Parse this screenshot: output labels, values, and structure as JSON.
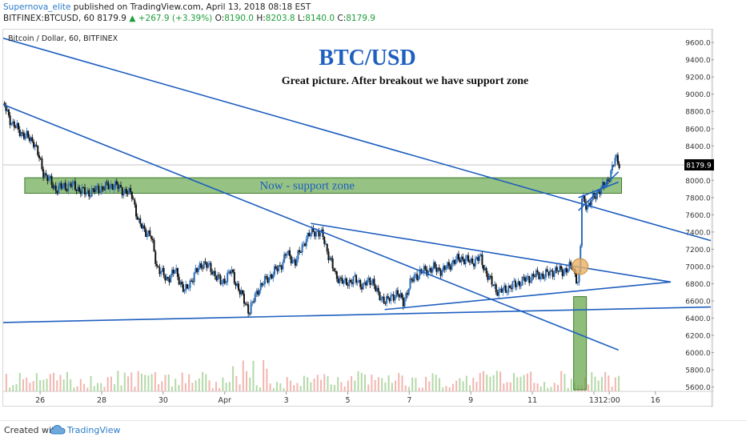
{
  "header": {
    "author": "Supernova_elite",
    "published_text": "published on TradingView.com, April 13, 2018 08:18 EST",
    "symbol": "BITFINEX:BTCUSD, 60",
    "last": "8179.9",
    "change": "▲ +267.9 (+3.39%)",
    "o_label": "O:",
    "o_value": "8190.0",
    "h_label": "H:",
    "h_value": "8203.8",
    "l_label": "L:",
    "l_value": "8140.0",
    "c_label": "C:",
    "c_value": "8179.9"
  },
  "footer": {
    "created_with": "Created with",
    "brand": "TradingView"
  },
  "colors": {
    "accent": "#2a7cc7",
    "trendline": "#1f5fbf",
    "zone_fill": "#6aa84f",
    "bull": "#2b6cb8",
    "bear": "#111111",
    "volume_up": "#b5d9a8",
    "volume_down": "#f2b6b0",
    "marker": "#e8b068"
  },
  "chart_data": {
    "type": "candlestick",
    "legend_title": "Bitcoin / Dollar, 60, BITFINEX",
    "annotation_title": "BTC/USD",
    "annotation_subtitle": "Great picture. After breakout we have support zone",
    "zone_label": "Now - support zone",
    "last_price_label": "8179.9",
    "ylim": [
      5550,
      9750
    ],
    "y_ticks": [
      9600,
      9400,
      9200,
      9000,
      8800,
      8600,
      8400,
      8200,
      8000,
      7800,
      7600,
      7400,
      7200,
      7000,
      6800,
      6600,
      6400,
      6200,
      6000,
      5800,
      5600
    ],
    "y_tick_labels": [
      "9600.0",
      "9400.0",
      "9200.0",
      "9000.0",
      "8800.0",
      "8600.0",
      "8400.0",
      "8200.0",
      "8000.0",
      "7800.0",
      "7600.0",
      "7400.0",
      "7200.0",
      "7000.0",
      "6800.0",
      "6600.0",
      "6400.0",
      "6200.0",
      "6000.0",
      "5800.0",
      "5600.0"
    ],
    "x_ticks": [
      "26",
      "28",
      "30",
      "Apr",
      "3",
      "5",
      "7",
      "9",
      "11",
      "13",
      "12:00",
      "16"
    ],
    "x_tick_days": [
      -5,
      -3,
      -1,
      1,
      3,
      5,
      7,
      9,
      11,
      13,
      13.5,
      15
    ],
    "xlim": [
      -6.2,
      16.8
    ],
    "price_path": [
      [
        -6.2,
        8900
      ],
      [
        -5.9,
        8650
      ],
      [
        -5.5,
        8520
      ],
      [
        -5.2,
        8450
      ],
      [
        -4.9,
        8100
      ],
      [
        -4.5,
        7900
      ],
      [
        -4.0,
        7950
      ],
      [
        -3.5,
        7850
      ],
      [
        -3.1,
        7900
      ],
      [
        -2.6,
        7950
      ],
      [
        -2.3,
        7880
      ],
      [
        -2.0,
        7830
      ],
      [
        -1.8,
        7500
      ],
      [
        -1.4,
        7350
      ],
      [
        -1.2,
        7000
      ],
      [
        -0.9,
        6850
      ],
      [
        -0.6,
        6950
      ],
      [
        -0.3,
        6700
      ],
      [
        0.0,
        6900
      ],
      [
        0.3,
        7050
      ],
      [
        0.6,
        6950
      ],
      [
        0.9,
        6800
      ],
      [
        1.2,
        6950
      ],
      [
        1.5,
        6700
      ],
      [
        1.8,
        6480
      ],
      [
        2.1,
        6750
      ],
      [
        2.5,
        6900
      ],
      [
        2.8,
        7000
      ],
      [
        3.0,
        7150
      ],
      [
        3.3,
        7050
      ],
      [
        3.6,
        7300
      ],
      [
        3.9,
        7420
      ],
      [
        4.2,
        7350
      ],
      [
        4.4,
        7100
      ],
      [
        4.6,
        6900
      ],
      [
        4.9,
        6800
      ],
      [
        5.2,
        6850
      ],
      [
        5.5,
        6780
      ],
      [
        5.8,
        6850
      ],
      [
        6.0,
        6650
      ],
      [
        6.3,
        6600
      ],
      [
        6.6,
        6700
      ],
      [
        6.8,
        6580
      ],
      [
        7.0,
        6780
      ],
      [
        7.2,
        6900
      ],
      [
        7.5,
        6950
      ],
      [
        7.8,
        6980
      ],
      [
        8.1,
        6950
      ],
      [
        8.4,
        7050
      ],
      [
        8.7,
        7100
      ],
      [
        9.0,
        7050
      ],
      [
        9.3,
        7100
      ],
      [
        9.6,
        6850
      ],
      [
        9.9,
        6700
      ],
      [
        10.2,
        6750
      ],
      [
        10.5,
        6800
      ],
      [
        10.8,
        6850
      ],
      [
        11.1,
        6900
      ],
      [
        11.4,
        6900
      ],
      [
        11.7,
        6950
      ],
      [
        12.0,
        6950
      ],
      [
        12.3,
        7000
      ],
      [
        12.5,
        6800
      ],
      [
        12.55,
        7000
      ],
      [
        12.6,
        7800
      ],
      [
        12.8,
        7700
      ],
      [
        13.0,
        7800
      ],
      [
        13.2,
        7900
      ],
      [
        13.4,
        7950
      ],
      [
        13.55,
        8100
      ],
      [
        13.7,
        8250
      ],
      [
        13.85,
        8180
      ]
    ],
    "volume_zone": {
      "day": 12.55,
      "top": 6650
    },
    "breakout_marker": {
      "day": 12.55,
      "price": 7000
    },
    "trendlines": [
      {
        "from": [
          -6.2,
          9650
        ],
        "to": [
          16.8,
          7300
        ]
      },
      {
        "from": [
          -6.2,
          8880
        ],
        "to": [
          13.8,
          6030
        ]
      },
      {
        "from": [
          -6.2,
          6350
        ],
        "to": [
          16.8,
          6530
        ]
      },
      {
        "from": [
          3.8,
          7500
        ],
        "to": [
          15.5,
          6820
        ]
      },
      {
        "from": [
          6.2,
          6500
        ],
        "to": [
          15.5,
          6820
        ]
      },
      {
        "from": [
          12.5,
          7650
        ],
        "to": [
          13.8,
          8100
        ]
      },
      {
        "from": [
          12.5,
          7800
        ],
        "to": [
          13.8,
          7980
        ]
      }
    ],
    "support_zone": {
      "x_from": -5.5,
      "x_to": 13.9,
      "y_from": 7850,
      "y_to": 8030
    }
  }
}
